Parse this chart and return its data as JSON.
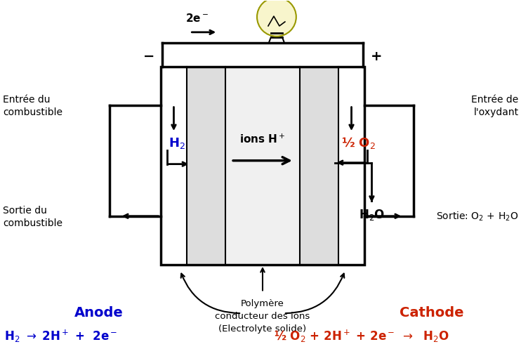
{
  "bg_color": "#ffffff",
  "blue_color": "#0000cc",
  "red_color": "#cc2200",
  "black_color": "#000000",
  "anode_label": "Anode",
  "cathode_label": "Cathode",
  "h2_label": "H$_2$",
  "o2_label": "½ O$_2$",
  "h2o_label": "H$_2$O",
  "ions_label": "ions H$^+$",
  "electrolyte_label1": "Polymère",
  "electrolyte_label2": "conducteur des ions",
  "electrolyte_label3": "(Electrolyte solide)",
  "entree_combustible_1": "Entrée du",
  "entree_combustible_2": "combustible",
  "entree_oxydant_1": "Entrée de",
  "entree_oxydant_2": "l'oxydant",
  "sortie_combustible_1": "Sortie du",
  "sortie_combustible_2": "combustible",
  "sortie_oxydant": "Sortie: O$_2$ + H$_2$O",
  "anode_eq": "H$_2$ $\\rightarrow$ 2H$^+$ +  2e$^-$",
  "cathode_eq": "½ O$_2$ + 2H$^+$ + 2e$^-$ $\\rightarrow$  H$_2$O",
  "electron_label": "2e$^-$",
  "minus_label": "−",
  "plus_label": "+"
}
